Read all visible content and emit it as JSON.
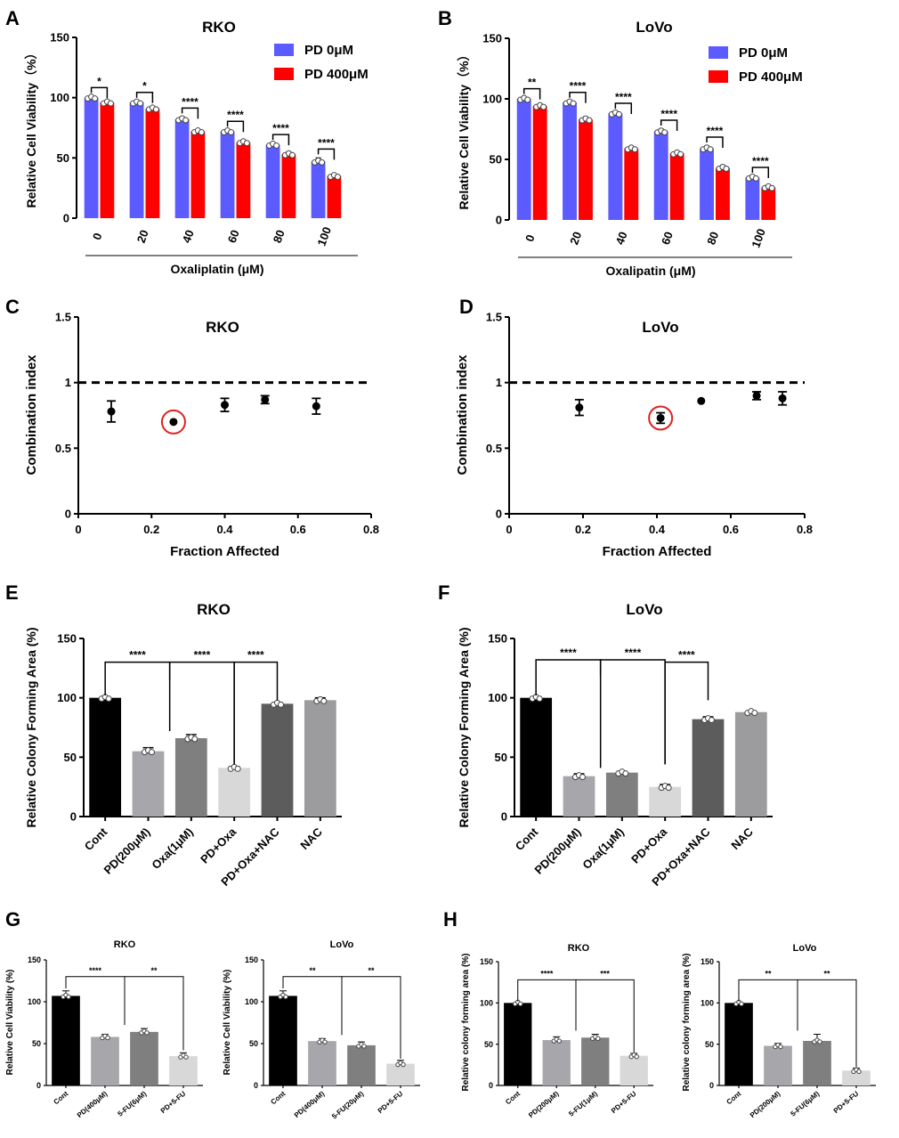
{
  "panels": {
    "A": {
      "letter": "A",
      "title": "RKO",
      "type": "grouped-bar",
      "ylabel": "Relative Cell Viability（%）",
      "xlabel": "Oxaliplatin (μM)",
      "ylim": [
        0,
        150
      ],
      "yticks": [
        0,
        50,
        100,
        150
      ],
      "categories": [
        "0",
        "20",
        "40",
        "60",
        "80",
        "100"
      ],
      "series": [
        {
          "name": "PD 0μM",
          "color": "#5b5bff",
          "values": [
            100,
            96,
            82,
            72,
            61,
            47
          ],
          "errors": [
            1,
            1,
            2,
            1,
            1,
            3
          ]
        },
        {
          "name": "PD 400μM",
          "color": "#ff0000",
          "values": [
            96,
            91,
            72,
            63,
            53,
            35
          ],
          "errors": [
            1,
            1,
            1,
            1,
            2,
            1
          ]
        }
      ],
      "significance": [
        "*",
        "*",
        "****",
        "****",
        "****",
        "****"
      ]
    },
    "B": {
      "letter": "B",
      "title": "LoVo",
      "type": "grouped-bar",
      "ylabel": "Relative Cell Viability（%）",
      "xlabel": "Oxalipatin (μM)",
      "ylim": [
        0,
        150
      ],
      "yticks": [
        0,
        50,
        100,
        150
      ],
      "categories": [
        "0",
        "20",
        "40",
        "60",
        "80",
        "100"
      ],
      "series": [
        {
          "name": "PD 0μM",
          "color": "#5b5bff",
          "values": [
            100,
            97,
            88,
            73,
            59,
            35
          ],
          "errors": [
            1,
            1,
            1,
            2,
            2,
            1
          ]
        },
        {
          "name": "PD 400μM",
          "color": "#ff0000",
          "values": [
            94,
            83,
            59,
            55,
            43,
            27
          ],
          "errors": [
            1,
            2,
            1,
            1,
            2,
            1
          ]
        }
      ],
      "significance": [
        "**",
        "****",
        "****",
        "****",
        "****",
        "****"
      ]
    },
    "C": {
      "letter": "C",
      "title": "RKO",
      "type": "scatter",
      "ylabel": "Combination index",
      "xlabel": "Fraction Affected",
      "xlim": [
        0,
        0.8
      ],
      "ylim": [
        0,
        1.5
      ],
      "xticks": [
        0.0,
        0.2,
        0.4,
        0.6,
        0.8
      ],
      "yticks": [
        0.0,
        0.5,
        1.0,
        1.5
      ],
      "reference_line": 1.0,
      "x": [
        0.09,
        0.26,
        0.4,
        0.51,
        0.65
      ],
      "y": [
        0.78,
        0.7,
        0.83,
        0.87,
        0.82
      ],
      "errors": [
        0.08,
        0.01,
        0.05,
        0.03,
        0.06
      ],
      "highlight_index": 1
    },
    "D": {
      "letter": "D",
      "title": "LoVo",
      "type": "scatter",
      "ylabel": "Combination index",
      "xlabel": "Fraction Affected",
      "xlim": [
        0,
        0.8
      ],
      "ylim": [
        0,
        1.5
      ],
      "xticks": [
        0.0,
        0.2,
        0.4,
        0.6,
        0.8
      ],
      "yticks": [
        0.0,
        0.5,
        1.0,
        1.5
      ],
      "reference_line": 1.0,
      "x": [
        0.19,
        0.41,
        0.52,
        0.67,
        0.74
      ],
      "y": [
        0.81,
        0.73,
        0.86,
        0.9,
        0.88
      ],
      "errors": [
        0.06,
        0.04,
        0.01,
        0.03,
        0.05
      ],
      "highlight_index": 1
    },
    "E": {
      "letter": "E",
      "title": "RKO",
      "type": "bar",
      "ylabel": "Relative Colony Forming Area (%)",
      "ylim": [
        0,
        150
      ],
      "yticks": [
        0,
        50,
        100,
        150
      ],
      "categories": [
        "Cont",
        "PD(200μM)",
        "Oxa(1μM)",
        "PD+Oxa",
        "PD+Oxa+NAC",
        "NAC"
      ],
      "values": [
        100,
        55,
        66,
        41,
        95,
        98
      ],
      "errors": [
        0.5,
        3,
        3,
        1,
        1,
        2
      ],
      "colors": [
        "#000000",
        "#a6a6ab",
        "#7f7f7f",
        "#d8d8d8",
        "#5c5c5c",
        "#9c9c9f"
      ],
      "significance": [
        "****",
        "****",
        "****"
      ]
    },
    "F": {
      "letter": "F",
      "title": "LoVo",
      "type": "bar",
      "ylabel": "Relative Colony Forming Area (%)",
      "ylim": [
        0,
        150
      ],
      "yticks": [
        0,
        50,
        100,
        150
      ],
      "categories": [
        "Cont",
        "PD(200μM)",
        "Oxa(1μM)",
        "PD+Oxa",
        "PD+Oxa+NAC",
        "NAC"
      ],
      "values": [
        100,
        34,
        37,
        25,
        82,
        88
      ],
      "errors": [
        0.5,
        2,
        1,
        2,
        2,
        1
      ],
      "colors": [
        "#000000",
        "#a6a6ab",
        "#7f7f7f",
        "#d8d8d8",
        "#5c5c5c",
        "#9c9c9f"
      ],
      "significance": [
        "****",
        "****",
        "****"
      ]
    },
    "G1": {
      "letter": "G",
      "title": "RKO",
      "type": "bar",
      "ylabel": "Relative Cell Viability (%)",
      "ylim": [
        0,
        150
      ],
      "yticks": [
        0,
        50,
        100,
        150
      ],
      "categories": [
        "Cont",
        "PD(400μM)",
        "5-FU(6μM)",
        "PD+5-FU"
      ],
      "values": [
        107,
        58,
        64,
        35
      ],
      "errors": [
        6,
        3,
        4,
        4
      ],
      "colors": [
        "#000000",
        "#a6a6ab",
        "#7f7f7f",
        "#d8d8d8"
      ],
      "significance": [
        "****",
        "**"
      ]
    },
    "G2": {
      "letter": "",
      "title": "LoVo",
      "type": "bar",
      "ylabel": "Relative Cell Viability (%)",
      "ylim": [
        0,
        150
      ],
      "yticks": [
        0,
        50,
        100,
        150
      ],
      "categories": [
        "Cont",
        "PD(400μM)",
        "5-FU(20μM)",
        "PD+5-FU"
      ],
      "values": [
        107,
        53,
        48,
        26
      ],
      "errors": [
        6,
        3,
        4,
        4
      ],
      "colors": [
        "#000000",
        "#a6a6ab",
        "#7f7f7f",
        "#d8d8d8"
      ],
      "significance": [
        "**",
        "**"
      ]
    },
    "H1": {
      "letter": "H",
      "title": "RKO",
      "type": "bar",
      "ylabel": "Relative colony forming area (%)",
      "ylim": [
        0,
        150
      ],
      "yticks": [
        0,
        50,
        100,
        150
      ],
      "categories": [
        "Cont",
        "PD(200μM)",
        "5-FU(1μM)",
        "PD+5-FU"
      ],
      "values": [
        100,
        55,
        58,
        36
      ],
      "errors": [
        0.5,
        4,
        4,
        3
      ],
      "colors": [
        "#000000",
        "#a6a6ab",
        "#7f7f7f",
        "#d8d8d8"
      ],
      "significance": [
        "****",
        "***"
      ]
    },
    "H2": {
      "letter": "",
      "title": "LoVo",
      "type": "bar",
      "ylabel": "Relative colony forming area (%)",
      "ylim": [
        0,
        150
      ],
      "yticks": [
        0,
        50,
        100,
        150
      ],
      "categories": [
        "Cont",
        "PD(200μM)",
        "5-FU(6μM)",
        "PD+5-FU"
      ],
      "values": [
        100,
        48,
        54,
        18
      ],
      "errors": [
        0.5,
        3,
        8,
        3
      ],
      "colors": [
        "#000000",
        "#a6a6ab",
        "#7f7f7f",
        "#d8d8d8"
      ],
      "significance": [
        "**",
        "**"
      ]
    }
  },
  "chart_data": [
    {
      "panel": "A",
      "type": "bar",
      "title": "RKO",
      "xlabel": "Oxaliplatin (μM)",
      "ylabel": "Relative Cell Viability（%）",
      "ylim": [
        0,
        150
      ],
      "categories": [
        "0",
        "20",
        "40",
        "60",
        "80",
        "100"
      ],
      "series": [
        {
          "name": "PD 0μM",
          "values": [
            100,
            96,
            82,
            72,
            61,
            47
          ]
        },
        {
          "name": "PD 400μM",
          "values": [
            96,
            91,
            72,
            63,
            53,
            35
          ]
        }
      ]
    },
    {
      "panel": "B",
      "type": "bar",
      "title": "LoVo",
      "xlabel": "Oxalipatin (μM)",
      "ylabel": "Relative Cell Viability（%）",
      "ylim": [
        0,
        150
      ],
      "categories": [
        "0",
        "20",
        "40",
        "60",
        "80",
        "100"
      ],
      "series": [
        {
          "name": "PD 0μM",
          "values": [
            100,
            97,
            88,
            73,
            59,
            35
          ]
        },
        {
          "name": "PD 400μM",
          "values": [
            94,
            83,
            59,
            55,
            43,
            27
          ]
        }
      ]
    },
    {
      "panel": "C",
      "type": "scatter",
      "title": "RKO",
      "xlabel": "Fraction Affected",
      "ylabel": "Combination index",
      "xlim": [
        0,
        0.8
      ],
      "ylim": [
        0,
        1.5
      ],
      "x": [
        0.09,
        0.26,
        0.4,
        0.51,
        0.65
      ],
      "y": [
        0.78,
        0.7,
        0.83,
        0.87,
        0.82
      ]
    },
    {
      "panel": "D",
      "type": "scatter",
      "title": "LoVo",
      "xlabel": "Fraction Affected",
      "ylabel": "Combination index",
      "xlim": [
        0,
        0.8
      ],
      "ylim": [
        0,
        1.5
      ],
      "x": [
        0.19,
        0.41,
        0.52,
        0.67,
        0.74
      ],
      "y": [
        0.81,
        0.73,
        0.86,
        0.9,
        0.88
      ]
    },
    {
      "panel": "E",
      "type": "bar",
      "title": "RKO",
      "ylabel": "Relative Colony Forming Area (%)",
      "ylim": [
        0,
        150
      ],
      "categories": [
        "Cont",
        "PD(200μM)",
        "Oxa(1μM)",
        "PD+Oxa",
        "PD+Oxa+NAC",
        "NAC"
      ],
      "values": [
        100,
        55,
        66,
        41,
        95,
        98
      ]
    },
    {
      "panel": "F",
      "type": "bar",
      "title": "LoVo",
      "ylabel": "Relative Colony Forming Area (%)",
      "ylim": [
        0,
        150
      ],
      "categories": [
        "Cont",
        "PD(200μM)",
        "Oxa(1μM)",
        "PD+Oxa",
        "PD+Oxa+NAC",
        "NAC"
      ],
      "values": [
        100,
        34,
        37,
        25,
        82,
        88
      ]
    },
    {
      "panel": "G-RKO",
      "type": "bar",
      "title": "RKO",
      "ylabel": "Relative Cell Viability (%)",
      "ylim": [
        0,
        150
      ],
      "categories": [
        "Cont",
        "PD(400μM)",
        "5-FU(6μM)",
        "PD+5-FU"
      ],
      "values": [
        107,
        58,
        64,
        35
      ]
    },
    {
      "panel": "G-LoVo",
      "type": "bar",
      "title": "LoVo",
      "ylabel": "Relative Cell Viability (%)",
      "ylim": [
        0,
        150
      ],
      "categories": [
        "Cont",
        "PD(400μM)",
        "5-FU(20μM)",
        "PD+5-FU"
      ],
      "values": [
        107,
        53,
        48,
        26
      ]
    },
    {
      "panel": "H-RKO",
      "type": "bar",
      "title": "RKO",
      "ylabel": "Relative colony forming area (%)",
      "ylim": [
        0,
        150
      ],
      "categories": [
        "Cont",
        "PD(200μM)",
        "5-FU(1μM)",
        "PD+5-FU"
      ],
      "values": [
        100,
        55,
        58,
        36
      ]
    },
    {
      "panel": "H-LoVo",
      "type": "bar",
      "title": "LoVo",
      "ylabel": "Relative colony forming area (%)",
      "ylim": [
        0,
        150
      ],
      "categories": [
        "Cont",
        "PD(200μM)",
        "5-FU(6μM)",
        "PD+5-FU"
      ],
      "values": [
        100,
        48,
        54,
        18
      ]
    }
  ]
}
